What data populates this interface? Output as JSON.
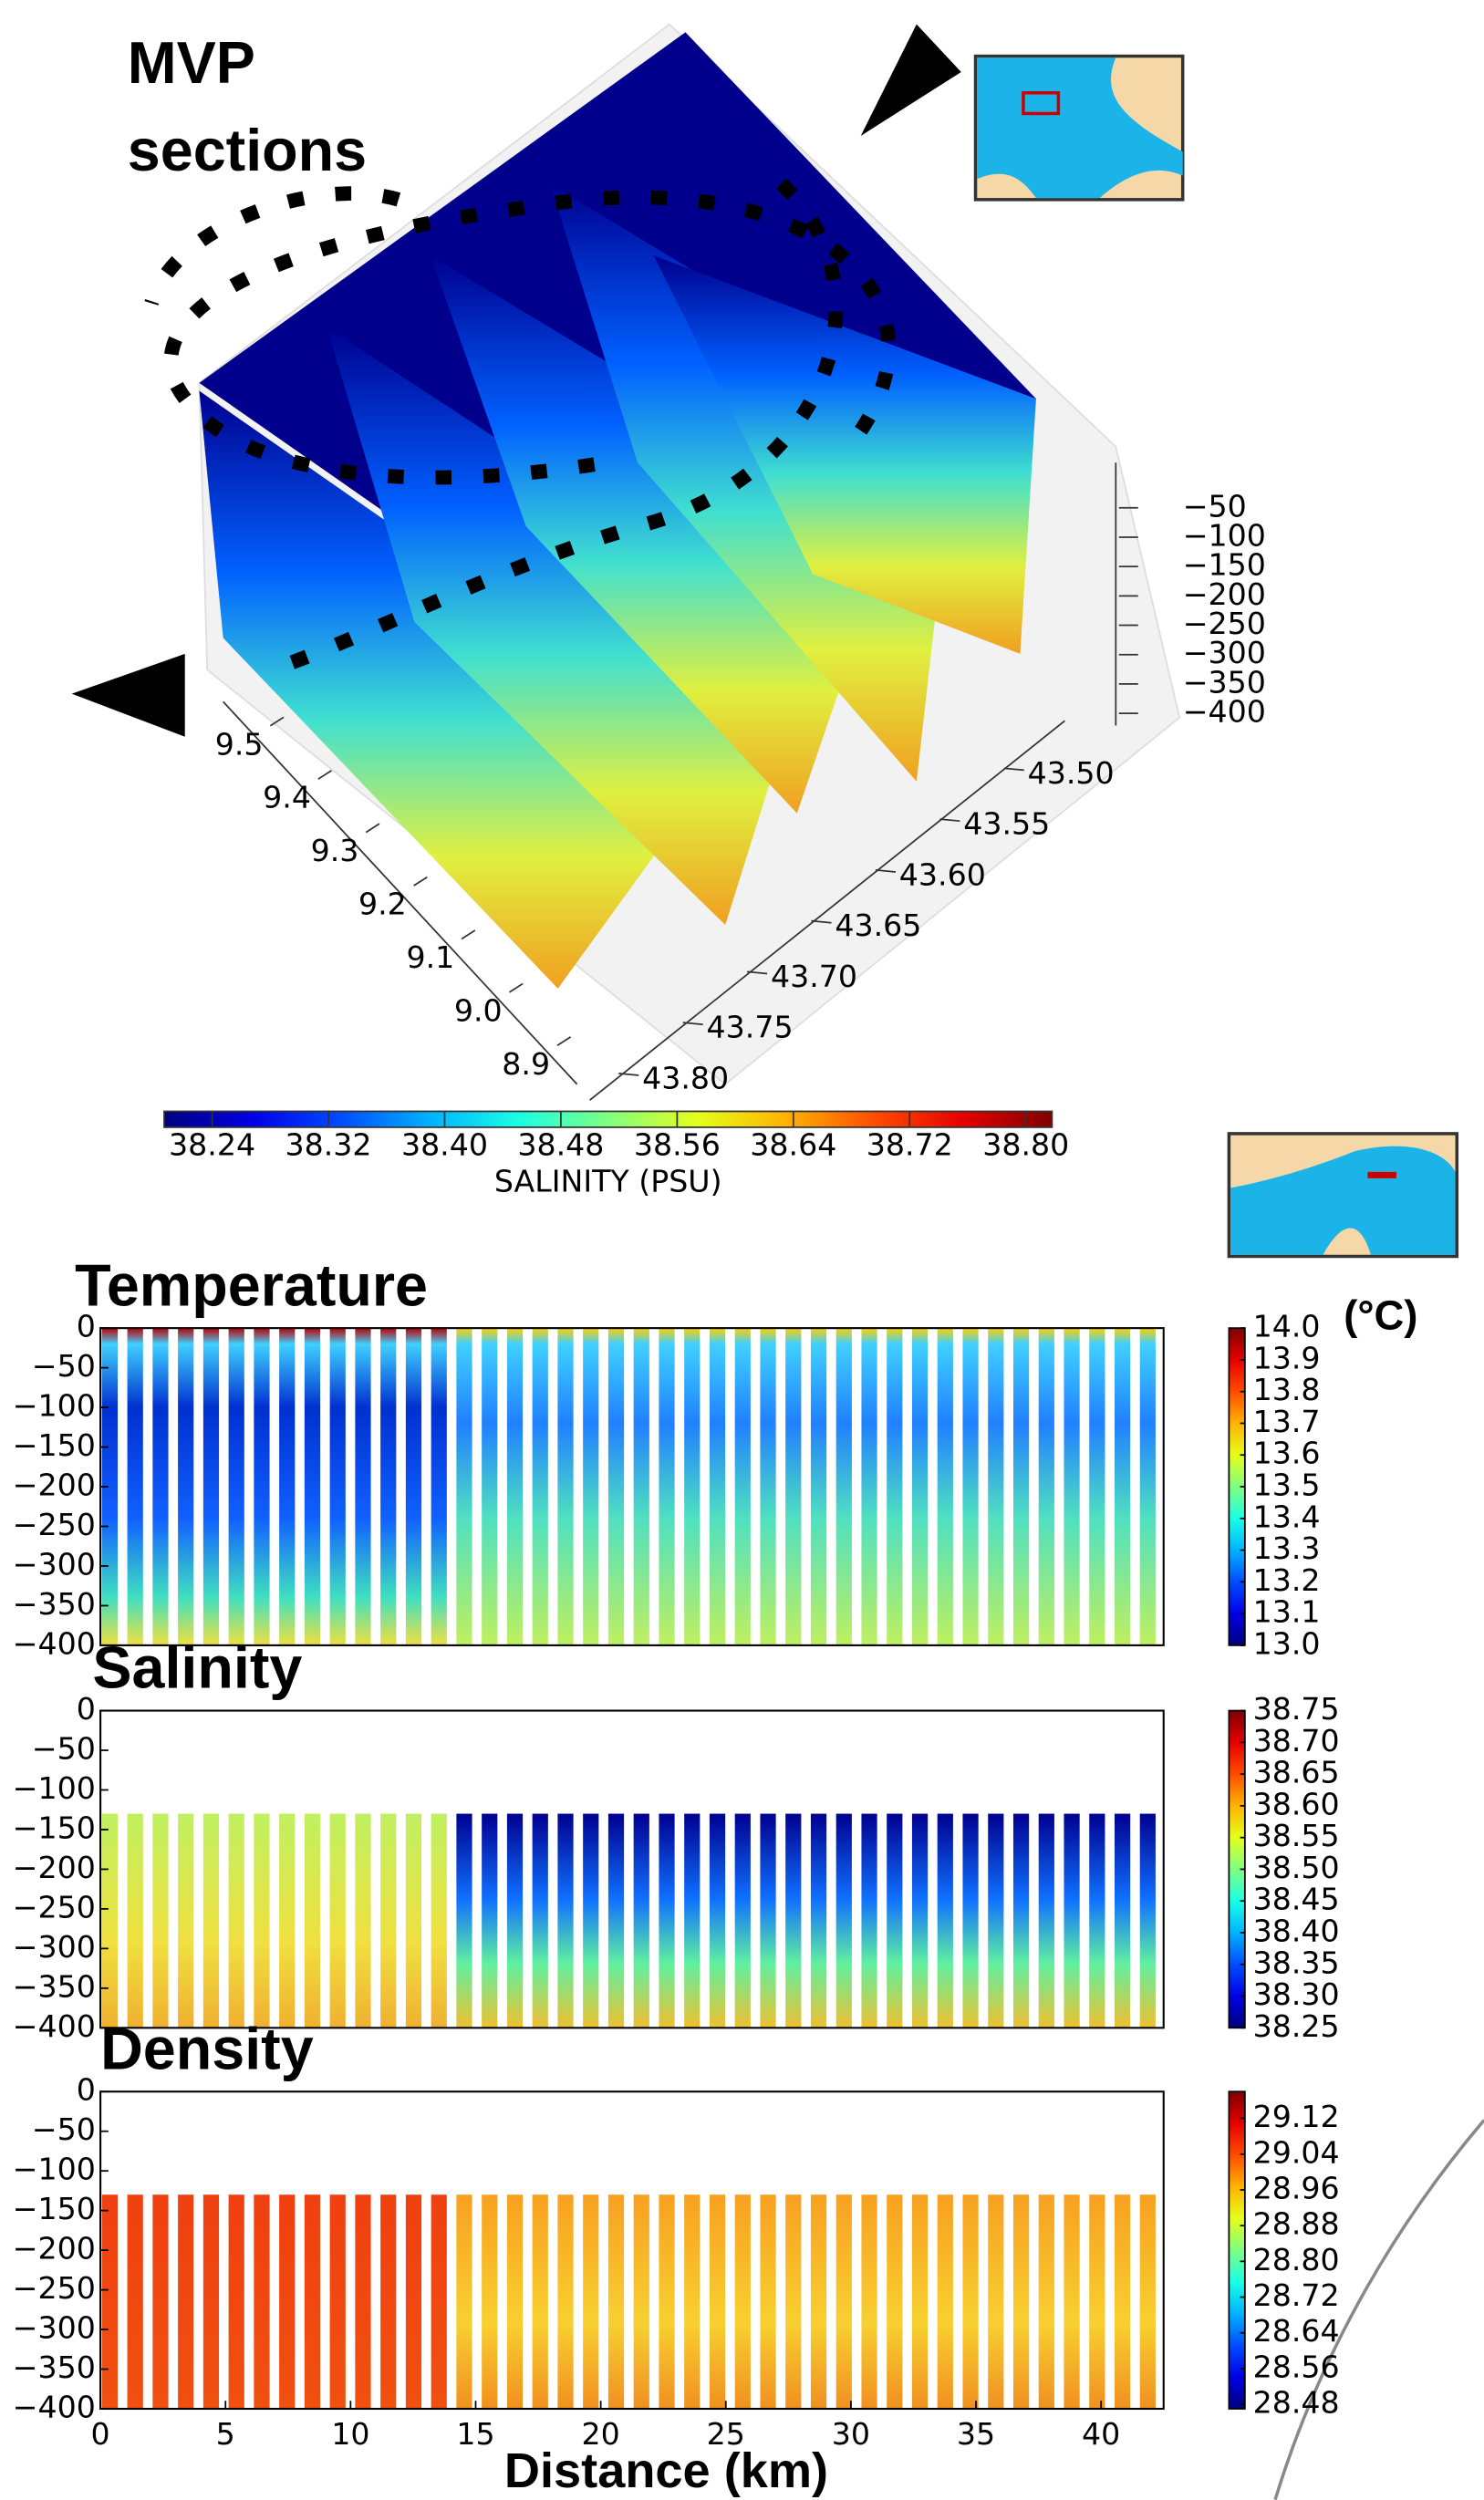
{
  "annotations": {
    "mvp": "MVP",
    "sections": "sections"
  },
  "chart_data": [
    {
      "type": "surface3d",
      "xticks": [
        9.5,
        9.4,
        9.3,
        9.2,
        9.1,
        {
          "value": 9.0,
          "label": "9.0"
        },
        8.9
      ],
      "xlim": [
        9.55,
        8.88
      ],
      "yticks": [
        {
          "value": 43.5,
          "label": "43.50"
        },
        43.55,
        {
          "value": 43.6,
          "label": "43.60"
        },
        43.65,
        {
          "value": 43.7,
          "label": "43.70"
        },
        43.75,
        {
          "value": 43.8,
          "label": "43.80"
        }
      ],
      "ylim": [
        43.48,
        43.82
      ],
      "zticks": [
        {
          "value": -50,
          "label": "−50"
        },
        {
          "value": -100,
          "label": "−100"
        },
        {
          "value": -150,
          "label": "−150"
        },
        {
          "value": -200,
          "label": "−200"
        },
        {
          "value": -250,
          "label": "−250"
        },
        {
          "value": -300,
          "label": "−300"
        },
        {
          "value": -350,
          "label": "−350"
        },
        {
          "value": -400,
          "label": "−400"
        }
      ],
      "zlim": [
        -30,
        -410
      ],
      "colorbar_label": "SALINITY (PSU)",
      "clim": [
        38.207,
        38.818
      ],
      "colorbar_ticks": [
        38.24,
        38.32,
        {
          "value": 38.4,
          "label": "38.40"
        },
        38.48,
        38.56,
        38.64,
        38.72,
        {
          "value": 38.8,
          "label": "38.80"
        }
      ]
    },
    {
      "type": "heatmap",
      "title": "Temperature",
      "units": "(°C)",
      "xlim": [
        0,
        42.5
      ],
      "ylim": [
        -400,
        0
      ],
      "yticks": [
        0,
        {
          "value": -50,
          "label": "−50"
        },
        {
          "value": -100,
          "label": "−100"
        },
        {
          "value": -150,
          "label": "−150"
        },
        {
          "value": -200,
          "label": "−200"
        },
        {
          "value": -250,
          "label": "−250"
        },
        {
          "value": -300,
          "label": "−300"
        },
        {
          "value": -350,
          "label": "−350"
        },
        {
          "value": -400,
          "label": "−400"
        }
      ],
      "clim": [
        13.0,
        14.0
      ],
      "colorbar_ticks": [
        {
          "value": 14.0,
          "label": "14.0"
        },
        13.9,
        13.8,
        13.7,
        13.6,
        13.5,
        13.4,
        13.3,
        13.2,
        13.1,
        {
          "value": 13.0,
          "label": "13.0"
        }
      ]
    },
    {
      "type": "heatmap",
      "title": "Salinity",
      "xlim": [
        0,
        42.5
      ],
      "ylim": [
        -400,
        0
      ],
      "yticks": [
        0,
        {
          "value": -50,
          "label": "−50"
        },
        {
          "value": -100,
          "label": "−100"
        },
        {
          "value": -150,
          "label": "−150"
        },
        {
          "value": -200,
          "label": "−200"
        },
        {
          "value": -250,
          "label": "−250"
        },
        {
          "value": -300,
          "label": "−300"
        },
        {
          "value": -350,
          "label": "−350"
        },
        {
          "value": -400,
          "label": "−400"
        }
      ],
      "clim": [
        38.25,
        38.75
      ],
      "colorbar_ticks": [
        38.75,
        {
          "value": 38.7,
          "label": "38.70"
        },
        38.65,
        {
          "value": 38.6,
          "label": "38.60"
        },
        38.55,
        {
          "value": 38.5,
          "label": "38.50"
        },
        38.45,
        {
          "value": 38.4,
          "label": "38.40"
        },
        38.35,
        {
          "value": 38.3,
          "label": "38.30"
        },
        38.25
      ]
    },
    {
      "type": "heatmap",
      "title": "Density",
      "xlim": [
        0,
        42.5
      ],
      "ylim": [
        -400,
        0
      ],
      "yticks": [
        0,
        {
          "value": -50,
          "label": "−50"
        },
        {
          "value": -100,
          "label": "−100"
        },
        {
          "value": -150,
          "label": "−150"
        },
        {
          "value": -200,
          "label": "−200"
        },
        {
          "value": -250,
          "label": "−250"
        },
        {
          "value": -300,
          "label": "−300"
        },
        {
          "value": -350,
          "label": "−350"
        },
        {
          "value": -400,
          "label": "−400"
        }
      ],
      "xticks": [
        0,
        5,
        10,
        15,
        20,
        25,
        30,
        35,
        40
      ],
      "xlabel": "Distance (km)",
      "clim": [
        28.47,
        29.18
      ],
      "colorbar_ticks": [
        29.12,
        29.04,
        28.96,
        28.88,
        {
          "value": 28.8,
          "label": "28.80"
        },
        28.72,
        28.64,
        28.56,
        28.48
      ]
    }
  ]
}
